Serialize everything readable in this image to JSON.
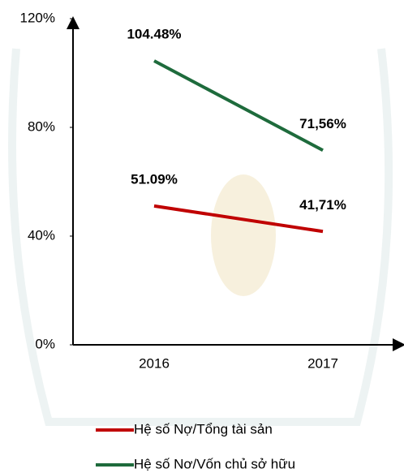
{
  "chart_data": {
    "type": "line",
    "categories": [
      "2016",
      "2017"
    ],
    "series": [
      {
        "name": "Hệ số Nợ/Tổng tài sản",
        "color": "#c00000",
        "values": [
          51.09,
          41.71
        ],
        "value_labels": [
          "51.09%",
          "41,71%"
        ]
      },
      {
        "name": "Hệ số Nơ/Vốn chủ sở hữu",
        "color": "#1e6b3c",
        "values": [
          104.48,
          71.56
        ],
        "value_labels": [
          "104.48%",
          "71,56%"
        ]
      }
    ],
    "ylim": [
      0,
      120
    ],
    "yticks": [
      {
        "value": 0,
        "label": "0%"
      },
      {
        "value": 40,
        "label": "40%"
      },
      {
        "value": 80,
        "label": "80%"
      },
      {
        "value": 120,
        "label": "120%"
      }
    ],
    "legend": "bottom"
  }
}
